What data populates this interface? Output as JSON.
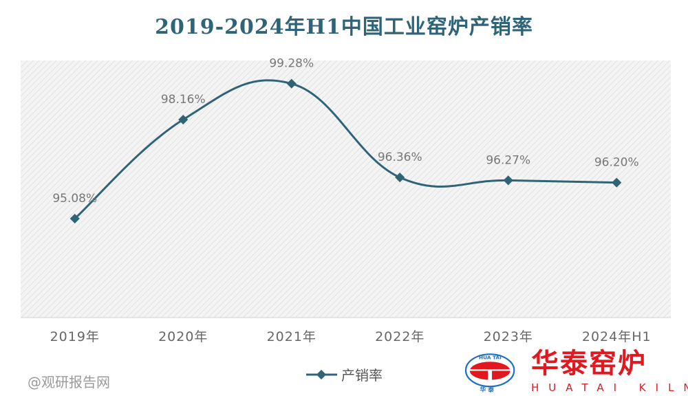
{
  "chart_data": {
    "type": "line",
    "title": "2019-2024年H1中国工业窑炉产销率",
    "categories": [
      "2019年",
      "2020年",
      "2021年",
      "2022年",
      "2023年",
      "2024年H1"
    ],
    "series": [
      {
        "name": "产销率",
        "values": [
          95.08,
          98.16,
          99.28,
          96.36,
          96.27,
          96.2
        ],
        "labels": [
          "95.08%",
          "98.16%",
          "99.28%",
          "96.36%",
          "96.27%",
          "96.20%"
        ],
        "color": "#2f6478"
      }
    ],
    "ylim": [
      92,
      100
    ],
    "smooth": true,
    "grid": false,
    "legend": "bottom",
    "plot_background": "hatched light gray"
  },
  "watermark": {
    "brand_cn": "华泰窑炉",
    "brand_en": "HUATAI KILN",
    "logo_text_top": "HUA TAI",
    "logo_text_bottom": "华 泰",
    "source": "@观研报告网",
    "brand_color": "#e0181f"
  }
}
